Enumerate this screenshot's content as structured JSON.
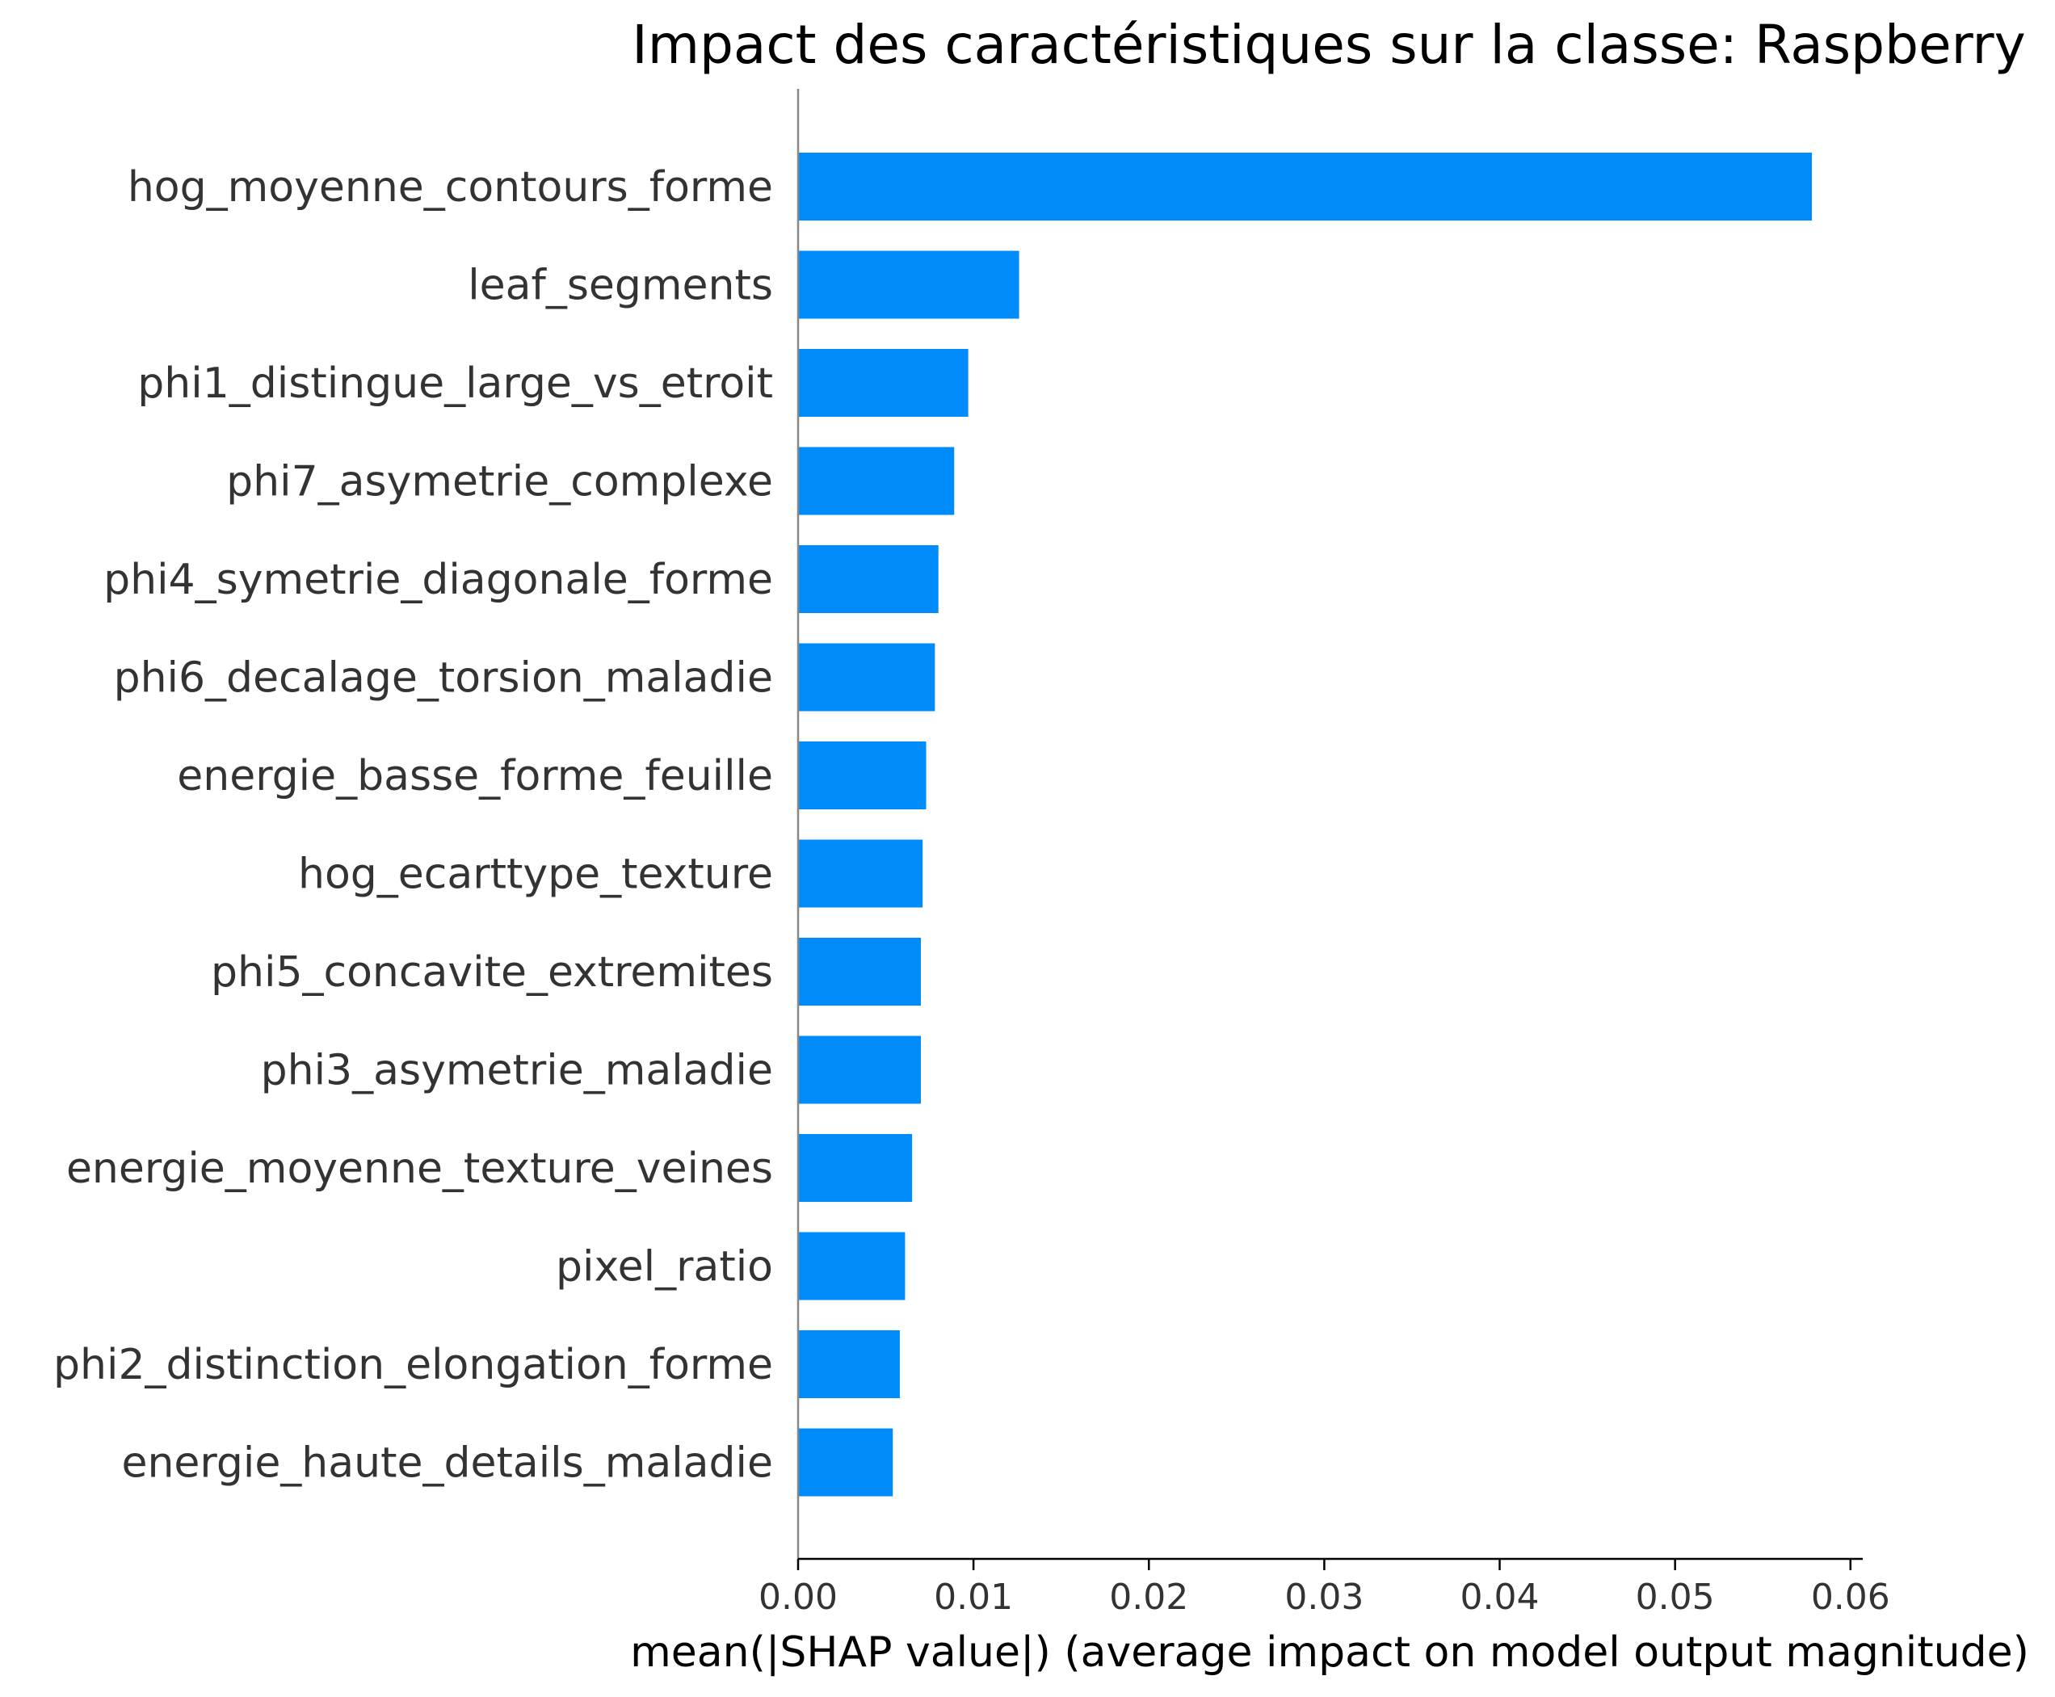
{
  "chart_data": {
    "type": "bar",
    "orientation": "horizontal",
    "title": "Impact des caractéristiques sur la classe: Raspberry",
    "xlabel": "mean(|SHAP value|) (average impact on model output magnitude)",
    "ylabel": "",
    "categories": [
      "hog_moyenne_contours_forme",
      "leaf_segments",
      "phi1_distingue_large_vs_etroit",
      "phi7_asymetrie_complexe",
      "phi4_symetrie_diagonale_forme",
      "phi6_decalage_torsion_maladie",
      "energie_basse_forme_feuille",
      "hog_ecarttype_texture",
      "phi5_concavite_extremites",
      "phi3_asymetrie_maladie",
      "energie_moyenne_texture_veines",
      "pixel_ratio",
      "phi2_distinction_elongation_forme",
      "energie_haute_details_maladie"
    ],
    "values": [
      0.0578,
      0.0126,
      0.0097,
      0.0089,
      0.008,
      0.0078,
      0.0073,
      0.0071,
      0.007,
      0.007,
      0.0065,
      0.0061,
      0.0058,
      0.0054
    ],
    "xticks": [
      "0.00",
      "0.01",
      "0.02",
      "0.03",
      "0.04",
      "0.05",
      "0.06"
    ],
    "xtick_values": [
      0,
      0.01,
      0.02,
      0.03,
      0.04,
      0.05,
      0.06
    ],
    "xlim": [
      0,
      0.0607
    ],
    "bar_color": "#008bfb",
    "grid": false,
    "legend": "none"
  }
}
